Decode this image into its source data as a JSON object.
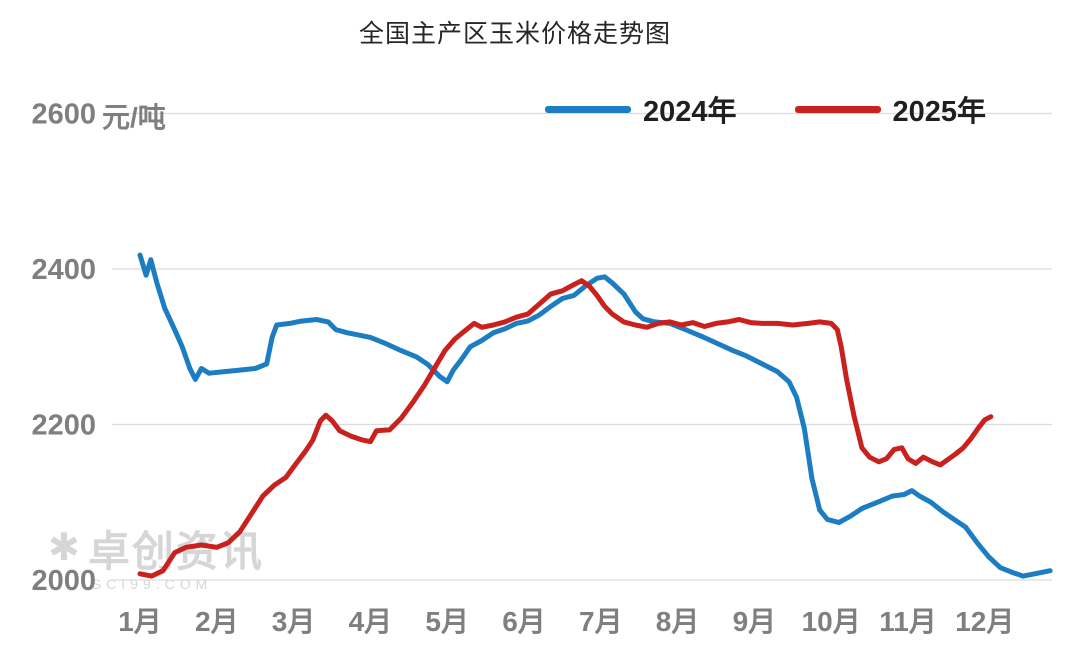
{
  "title": "全国主产区玉米价格走势图",
  "y_unit_label": "元/吨",
  "legend": [
    {
      "label": "2024年",
      "color": "#1d7dc2"
    },
    {
      "label": "2025年",
      "color": "#c9211e"
    }
  ],
  "watermark": {
    "brand": "卓创资讯",
    "domain": "SCI99.COM"
  },
  "chart_data": {
    "type": "line",
    "title": "全国主产区玉米价格走势图",
    "ylabel": "元/吨",
    "xlabel": "",
    "ylim": [
      2000,
      2600
    ],
    "yticks": [
      2000,
      2200,
      2400,
      2600
    ],
    "x_categories": [
      "1月",
      "2月",
      "3月",
      "4月",
      "5月",
      "6月",
      "7月",
      "8月",
      "9月",
      "10月",
      "11月",
      "12月"
    ],
    "grid": "horizontal",
    "legend_position": "top",
    "series": [
      {
        "name": "2024年",
        "color": "#1d7dc2",
        "points": [
          [
            1.0,
            2418
          ],
          [
            1.08,
            2392
          ],
          [
            1.14,
            2412
          ],
          [
            1.22,
            2382
          ],
          [
            1.32,
            2350
          ],
          [
            1.45,
            2322
          ],
          [
            1.55,
            2300
          ],
          [
            1.65,
            2272
          ],
          [
            1.72,
            2258
          ],
          [
            1.8,
            2272
          ],
          [
            1.9,
            2266
          ],
          [
            2.1,
            2268
          ],
          [
            2.3,
            2270
          ],
          [
            2.5,
            2272
          ],
          [
            2.65,
            2278
          ],
          [
            2.72,
            2312
          ],
          [
            2.78,
            2328
          ],
          [
            2.95,
            2330
          ],
          [
            3.1,
            2333
          ],
          [
            3.3,
            2335
          ],
          [
            3.45,
            2332
          ],
          [
            3.55,
            2322
          ],
          [
            3.7,
            2318
          ],
          [
            3.85,
            2315
          ],
          [
            4.0,
            2312
          ],
          [
            4.2,
            2304
          ],
          [
            4.4,
            2295
          ],
          [
            4.6,
            2287
          ],
          [
            4.75,
            2277
          ],
          [
            4.9,
            2262
          ],
          [
            5.0,
            2255
          ],
          [
            5.08,
            2270
          ],
          [
            5.18,
            2283
          ],
          [
            5.3,
            2300
          ],
          [
            5.45,
            2308
          ],
          [
            5.6,
            2318
          ],
          [
            5.75,
            2323
          ],
          [
            5.9,
            2330
          ],
          [
            6.05,
            2333
          ],
          [
            6.2,
            2341
          ],
          [
            6.35,
            2352
          ],
          [
            6.5,
            2362
          ],
          [
            6.65,
            2366
          ],
          [
            6.8,
            2378
          ],
          [
            6.95,
            2388
          ],
          [
            7.05,
            2390
          ],
          [
            7.15,
            2382
          ],
          [
            7.3,
            2368
          ],
          [
            7.45,
            2345
          ],
          [
            7.55,
            2336
          ],
          [
            7.7,
            2332
          ],
          [
            7.9,
            2330
          ],
          [
            8.1,
            2322
          ],
          [
            8.3,
            2314
          ],
          [
            8.5,
            2305
          ],
          [
            8.7,
            2296
          ],
          [
            8.9,
            2288
          ],
          [
            9.1,
            2278
          ],
          [
            9.3,
            2268
          ],
          [
            9.45,
            2255
          ],
          [
            9.55,
            2235
          ],
          [
            9.65,
            2195
          ],
          [
            9.75,
            2130
          ],
          [
            9.85,
            2090
          ],
          [
            9.95,
            2078
          ],
          [
            10.1,
            2074
          ],
          [
            10.25,
            2082
          ],
          [
            10.4,
            2092
          ],
          [
            10.6,
            2100
          ],
          [
            10.8,
            2108
          ],
          [
            10.95,
            2110
          ],
          [
            11.05,
            2115
          ],
          [
            11.15,
            2108
          ],
          [
            11.3,
            2100
          ],
          [
            11.45,
            2088
          ],
          [
            11.6,
            2078
          ],
          [
            11.75,
            2068
          ],
          [
            11.9,
            2048
          ],
          [
            12.05,
            2030
          ],
          [
            12.2,
            2016
          ],
          [
            12.35,
            2010
          ],
          [
            12.5,
            2005
          ],
          [
            12.65,
            2008
          ],
          [
            12.85,
            2012
          ]
        ]
      },
      {
        "name": "2025年",
        "color": "#c9211e",
        "points": [
          [
            1.0,
            2008
          ],
          [
            1.15,
            2005
          ],
          [
            1.3,
            2012
          ],
          [
            1.45,
            2035
          ],
          [
            1.6,
            2042
          ],
          [
            1.8,
            2045
          ],
          [
            2.0,
            2042
          ],
          [
            2.15,
            2048
          ],
          [
            2.3,
            2062
          ],
          [
            2.45,
            2085
          ],
          [
            2.6,
            2108
          ],
          [
            2.75,
            2122
          ],
          [
            2.9,
            2132
          ],
          [
            3.05,
            2152
          ],
          [
            3.15,
            2165
          ],
          [
            3.25,
            2180
          ],
          [
            3.35,
            2205
          ],
          [
            3.42,
            2212
          ],
          [
            3.5,
            2205
          ],
          [
            3.6,
            2192
          ],
          [
            3.75,
            2185
          ],
          [
            3.9,
            2180
          ],
          [
            4.0,
            2178
          ],
          [
            4.08,
            2192
          ],
          [
            4.25,
            2193
          ],
          [
            4.4,
            2208
          ],
          [
            4.55,
            2228
          ],
          [
            4.7,
            2250
          ],
          [
            4.85,
            2275
          ],
          [
            4.97,
            2295
          ],
          [
            5.1,
            2310
          ],
          [
            5.25,
            2322
          ],
          [
            5.35,
            2330
          ],
          [
            5.45,
            2325
          ],
          [
            5.6,
            2328
          ],
          [
            5.75,
            2332
          ],
          [
            5.9,
            2338
          ],
          [
            6.05,
            2342
          ],
          [
            6.2,
            2355
          ],
          [
            6.35,
            2368
          ],
          [
            6.5,
            2372
          ],
          [
            6.65,
            2380
          ],
          [
            6.75,
            2385
          ],
          [
            6.85,
            2378
          ],
          [
            6.95,
            2366
          ],
          [
            7.05,
            2352
          ],
          [
            7.15,
            2342
          ],
          [
            7.3,
            2332
          ],
          [
            7.45,
            2328
          ],
          [
            7.6,
            2325
          ],
          [
            7.75,
            2330
          ],
          [
            7.9,
            2332
          ],
          [
            8.05,
            2328
          ],
          [
            8.2,
            2331
          ],
          [
            8.35,
            2326
          ],
          [
            8.5,
            2330
          ],
          [
            8.65,
            2332
          ],
          [
            8.8,
            2335
          ],
          [
            8.95,
            2331
          ],
          [
            9.1,
            2330
          ],
          [
            9.3,
            2330
          ],
          [
            9.5,
            2328
          ],
          [
            9.7,
            2330
          ],
          [
            9.85,
            2332
          ],
          [
            10.0,
            2330
          ],
          [
            10.08,
            2322
          ],
          [
            10.13,
            2300
          ],
          [
            10.2,
            2258
          ],
          [
            10.3,
            2210
          ],
          [
            10.4,
            2170
          ],
          [
            10.5,
            2158
          ],
          [
            10.62,
            2152
          ],
          [
            10.72,
            2156
          ],
          [
            10.82,
            2168
          ],
          [
            10.92,
            2170
          ],
          [
            11.0,
            2156
          ],
          [
            11.1,
            2150
          ],
          [
            11.2,
            2158
          ],
          [
            11.32,
            2152
          ],
          [
            11.42,
            2148
          ],
          [
            11.52,
            2155
          ],
          [
            11.62,
            2162
          ],
          [
            11.72,
            2170
          ],
          [
            11.82,
            2182
          ],
          [
            11.92,
            2196
          ],
          [
            12.0,
            2206
          ],
          [
            12.08,
            2210
          ]
        ]
      }
    ]
  }
}
